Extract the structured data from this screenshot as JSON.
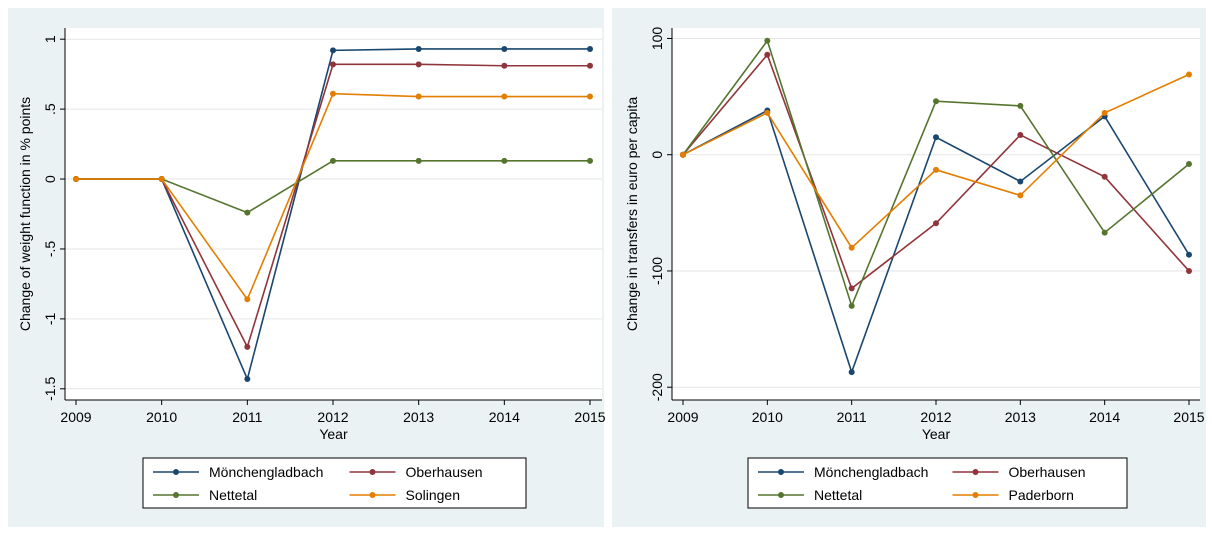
{
  "chart_data": [
    {
      "type": "line",
      "x_label": "Year",
      "y_label": "Change of weight function in % points",
      "categories": [
        "2009",
        "2010",
        "2011",
        "2012",
        "2013",
        "2014",
        "2015"
      ],
      "ylim": [
        -1.58,
        1.08
      ],
      "yticks": [
        {
          "value": -1.5,
          "label": "-1.5"
        },
        -1,
        {
          "value": -0.5,
          "label": "-.5"
        },
        0,
        {
          "value": 0.5,
          "label": ".5"
        },
        1
      ],
      "grid": true,
      "series": [
        {
          "name": "Mönchengladbach",
          "color": "#1a476f",
          "values": [
            0,
            0,
            -1.43,
            0.92,
            0.93,
            0.93,
            0.93
          ]
        },
        {
          "name": "Oberhausen",
          "color": "#90353b",
          "values": [
            0,
            0,
            -1.2,
            0.82,
            0.82,
            0.81,
            0.81
          ]
        },
        {
          "name": "Nettetal",
          "color": "#55752f",
          "values": [
            0,
            0,
            -0.24,
            0.13,
            0.13,
            0.13,
            0.13
          ]
        },
        {
          "name": "Solingen",
          "color": "#e37e00",
          "values": [
            0,
            0,
            -0.86,
            0.61,
            0.59,
            0.59,
            0.59
          ]
        }
      ]
    },
    {
      "type": "line",
      "x_label": "Year",
      "y_label": "Change in transfers in euro per capita",
      "categories": [
        "2009",
        "2010",
        "2011",
        "2012",
        "2013",
        "2014",
        "2015"
      ],
      "ylim": [
        -211,
        109
      ],
      "yticks": [
        -200,
        -100,
        0,
        100
      ],
      "grid": true,
      "series": [
        {
          "name": "Mönchengladbach",
          "color": "#1a476f",
          "values": [
            0,
            38,
            -187,
            15,
            -23,
            33,
            -86
          ]
        },
        {
          "name": "Oberhausen",
          "color": "#90353b",
          "values": [
            0,
            86,
            -115,
            -59,
            17,
            -19,
            -100
          ]
        },
        {
          "name": "Nettetal",
          "color": "#55752f",
          "values": [
            0,
            98,
            -130,
            46,
            42,
            -67,
            -8
          ]
        },
        {
          "name": "Paderborn",
          "color": "#e37e00",
          "values": [
            0,
            36,
            -80,
            -13,
            -35,
            36,
            69
          ]
        }
      ]
    }
  ]
}
